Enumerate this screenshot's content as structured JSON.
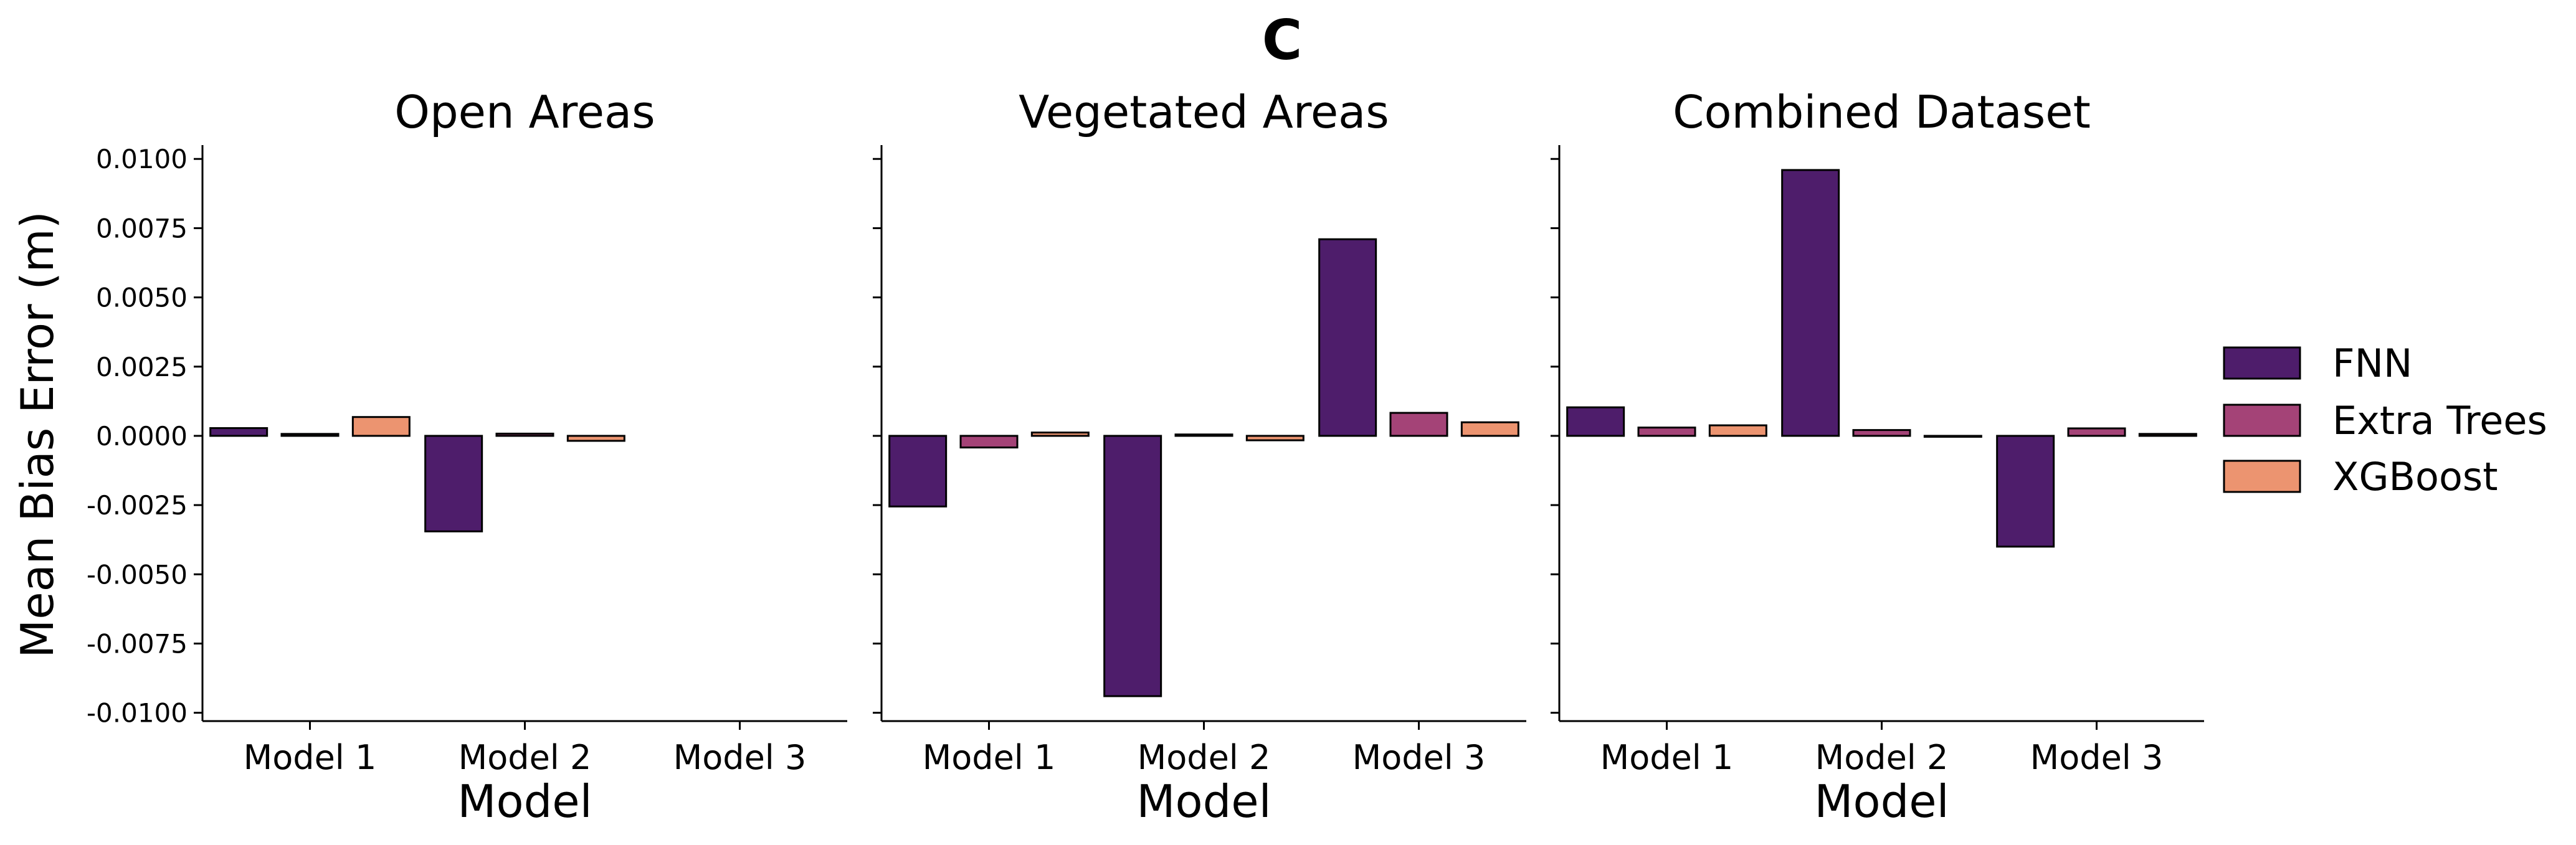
{
  "figure_title": "C",
  "ylabel": "Mean Bias Error (m)",
  "xlabel": "Model",
  "yticks": [
    "0.0100",
    "0.0075",
    "0.0050",
    "0.0025",
    "0.0000",
    "-0.0025",
    "-0.0050",
    "-0.0075",
    "-0.0100"
  ],
  "colors": {
    "FNN": "#4e1d6b",
    "Extra Trees": "#a44377",
    "XGBoost": "#ec9470"
  },
  "chart_data": [
    {
      "type": "bar",
      "title": "Open Areas",
      "xlabel": "Model",
      "ylabel": "Mean Bias Error (m)",
      "ylim": [
        -0.0103,
        0.0105
      ],
      "categories": [
        "Model 1",
        "Model 2",
        "Model 3"
      ],
      "series": [
        {
          "name": "FNN",
          "values": [
            0.00028,
            -0.00345,
            null
          ]
        },
        {
          "name": "Extra Trees",
          "values": [
            7e-05,
            8e-05,
            null
          ]
        },
        {
          "name": "XGBoost",
          "values": [
            0.00068,
            -0.00018,
            null
          ]
        }
      ],
      "legend": "right",
      "grid": false
    },
    {
      "type": "bar",
      "title": "Vegetated Areas",
      "xlabel": "Model",
      "ylabel": "",
      "ylim": [
        -0.0103,
        0.0105
      ],
      "categories": [
        "Model 1",
        "Model 2",
        "Model 3"
      ],
      "series": [
        {
          "name": "FNN",
          "values": [
            -0.00255,
            -0.0094,
            0.0071
          ]
        },
        {
          "name": "Extra Trees",
          "values": [
            -0.00042,
            5e-05,
            0.00083
          ]
        },
        {
          "name": "XGBoost",
          "values": [
            0.00012,
            -0.00016,
            0.00049
          ]
        }
      ],
      "legend": "right",
      "grid": false
    },
    {
      "type": "bar",
      "title": "Combined Dataset",
      "xlabel": "Model",
      "ylabel": "",
      "ylim": [
        -0.0103,
        0.0105
      ],
      "categories": [
        "Model 1",
        "Model 2",
        "Model 3"
      ],
      "series": [
        {
          "name": "FNN",
          "values": [
            0.00103,
            0.0096,
            -0.004
          ]
        },
        {
          "name": "Extra Trees",
          "values": [
            0.0003,
            0.00021,
            0.00027
          ]
        },
        {
          "name": "XGBoost",
          "values": [
            0.00038,
            -3e-05,
            7e-05
          ]
        }
      ],
      "legend": "right",
      "grid": false
    }
  ],
  "legend": {
    "items": [
      "FNN",
      "Extra Trees",
      "XGBoost"
    ]
  }
}
